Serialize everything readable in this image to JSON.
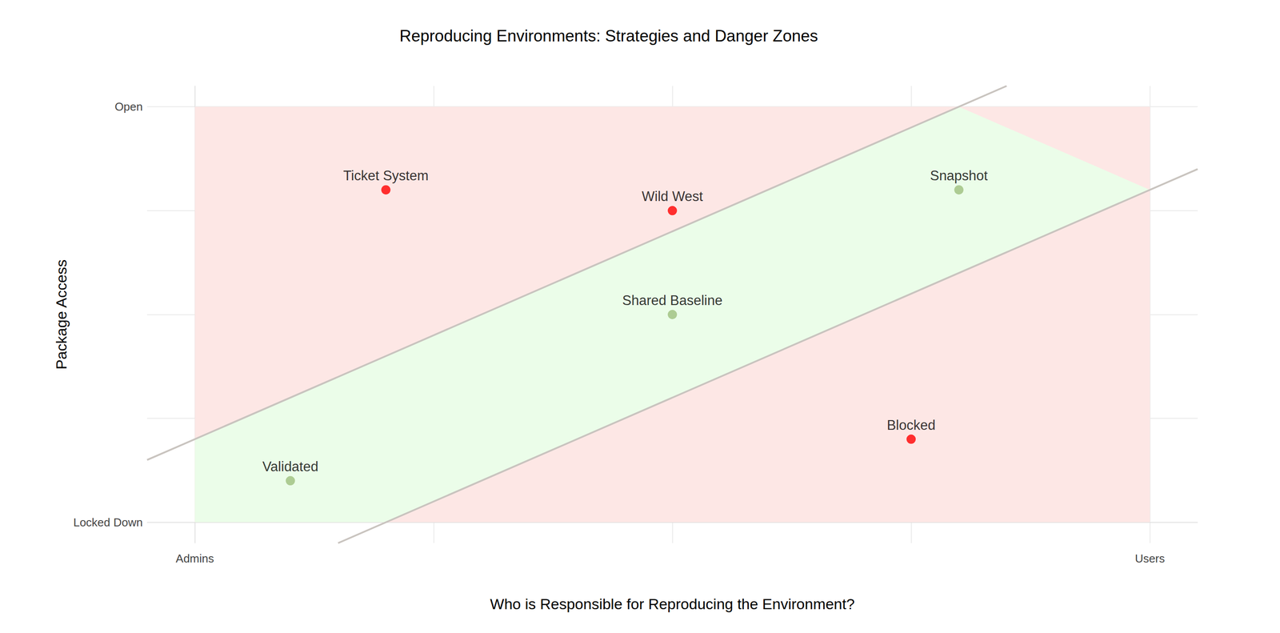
{
  "chart_data": {
    "type": "scatter",
    "title": "Reproducing Environments: Strategies and Danger Zones",
    "x_label": "Who is Responsible for Reproducing the Environment?",
    "y_label": "Package Access",
    "labels": [
      "Ticket System",
      "Wild West",
      "Snapshot",
      "Shared Baseline",
      "Blocked",
      "Validated"
    ],
    "x": [
      0.8,
      2.0,
      3.2,
      2.0,
      3.0,
      0.4
    ],
    "values": [
      3.2,
      3.0,
      3.2,
      2.0,
      0.8,
      0.4
    ],
    "colors": [
      "#ff0000",
      "#ff0000",
      "#9dbf7d",
      "#9dbf7d",
      "#ff0000",
      "#9dbf7d"
    ],
    "regions": [
      {
        "x": [
          0,
          4,
          4,
          0
        ],
        "y": [
          0,
          0,
          4,
          4
        ],
        "color": "#fde7e5"
      },
      {
        "x": [
          0,
          0,
          3.2,
          4,
          0.8
        ],
        "y": [
          0,
          0.8,
          4,
          3.2,
          0
        ],
        "color": "#ebfde9"
      }
    ],
    "lines": [
      {
        "x": [
          -0.2,
          3.4
        ],
        "y": [
          0.6,
          4.2
        ],
        "color": "#c9c4bf"
      },
      {
        "x": [
          0.6,
          4.2
        ],
        "y": [
          -0.2,
          3.4
        ],
        "color": "#c9c4bf"
      }
    ],
    "xlim": [
      -0.2,
      4.2
    ],
    "ylim": [
      -0.2,
      4.2
    ],
    "xticks": [
      {
        "value": 0,
        "label": "Admins"
      },
      {
        "value": 1,
        "label": null
      },
      {
        "value": 2,
        "label": null
      },
      {
        "value": 3,
        "label": null
      },
      {
        "value": 4,
        "label": "Users"
      }
    ],
    "yticks": [
      {
        "value": 0,
        "label": "Locked Down"
      },
      {
        "value": 1,
        "label": null
      },
      {
        "value": 2,
        "label": null
      },
      {
        "value": 3,
        "label": null
      },
      {
        "value": 4,
        "label": "Open"
      }
    ],
    "grid": true
  }
}
